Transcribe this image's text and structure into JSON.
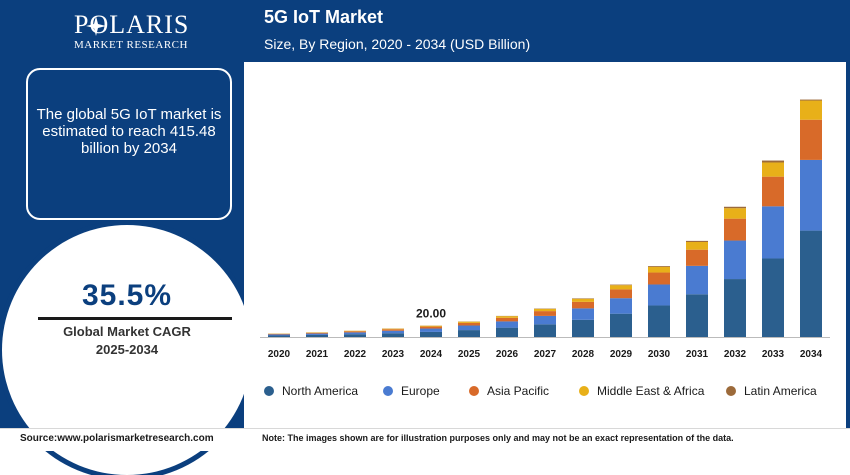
{
  "brand": {
    "name": "POLARIS",
    "tagline": "MARKET RESEARCH"
  },
  "info_box": {
    "text": "The global 5G IoT market is estimated to reach 415.48 billion by 2034"
  },
  "cagr": {
    "value": "35.5%",
    "label_line1": "Global Market CAGR",
    "label_line2": "2025-2034"
  },
  "footer": {
    "source": "Source:www.polarismarketresearch.com",
    "note": "Note: The images shown are for illustration purposes only and may not be an exact representation of the data."
  },
  "colors": {
    "frame": "#0b3f7e",
    "North America": "#2b5f8e",
    "Europe": "#4a7bd1",
    "Asia Pacific": "#d86a29",
    "Middle East & Africa": "#e8b019",
    "Latin America": "#9c6a3a"
  },
  "chart_data": {
    "type": "bar",
    "stacked": true,
    "title": "5G IoT Market",
    "subtitle": "Size, By Region, 2020 - 2034 (USD Billion)",
    "categories": [
      "2020",
      "2021",
      "2022",
      "2023",
      "2024",
      "2025",
      "2026",
      "2027",
      "2028",
      "2029",
      "2030",
      "2031",
      "2032",
      "2033",
      "2034"
    ],
    "series": [
      {
        "name": "North America",
        "values": [
          2.7,
          3.6,
          4.9,
          6.6,
          8.9,
          12.1,
          16.4,
          22.2,
          30.1,
          40.8,
          55.2,
          74.8,
          101.4,
          137.4,
          186.2
        ]
      },
      {
        "name": "Europe",
        "values": [
          1.8,
          2.4,
          3.2,
          4.4,
          5.9,
          8.0,
          10.9,
          14.7,
          20.0,
          27.1,
          36.7,
          49.7,
          67.4,
          91.3,
          123.7
        ]
      },
      {
        "name": "Asia Pacific",
        "values": [
          1.0,
          1.4,
          1.9,
          2.5,
          3.4,
          4.6,
          6.2,
          8.4,
          11.4,
          15.4,
          20.9,
          28.3,
          38.3,
          51.9,
          70.3
        ]
      },
      {
        "name": "Middle East & Africa",
        "values": [
          0.5,
          0.7,
          0.9,
          1.2,
          1.6,
          2.2,
          3.0,
          4.0,
          5.4,
          7.4,
          10.0,
          13.5,
          18.3,
          24.8,
          33.6
        ]
      },
      {
        "name": "Latin America",
        "values": [
          0.1,
          0.1,
          0.1,
          0.2,
          0.2,
          0.3,
          0.4,
          0.6,
          0.8,
          1.0,
          1.4,
          1.9,
          2.5,
          3.4,
          1.7
        ]
      }
    ],
    "data_labels": [
      {
        "category": "2024",
        "text": "20.00"
      }
    ],
    "ylim": [
      0,
      420
    ],
    "y_axis_visible": false,
    "grid": false,
    "legend": "bottom"
  }
}
